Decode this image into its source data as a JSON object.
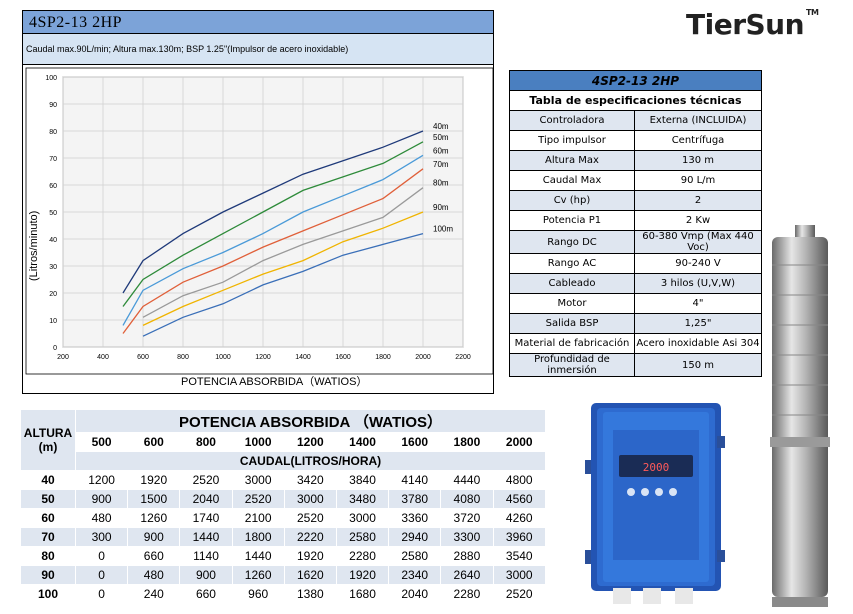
{
  "header": {
    "title": "4SP2-13    2HP",
    "subtitle": "Caudal max.90L/min;  Altura max.130m; BSP 1.25\"(Impulsor de acero inoxidable)"
  },
  "logo": {
    "text": "TierSun",
    "tm": "TM"
  },
  "chart_data": {
    "type": "line",
    "title": "",
    "xlabel": "POTENCIA ABSORBIDA（WATIOS）",
    "ylabel": "(Litros/minuto)",
    "xlim": [
      200,
      2200
    ],
    "ylim": [
      0,
      100
    ],
    "x_ticks": [
      200,
      400,
      600,
      800,
      1000,
      1200,
      1400,
      1600,
      1800,
      2000,
      2200
    ],
    "y_ticks": [
      0,
      10,
      20,
      30,
      40,
      50,
      60,
      70,
      80,
      90,
      100
    ],
    "grid": true,
    "series": [
      {
        "name": "40m",
        "color": "#1f3a7a",
        "points": [
          [
            500,
            20
          ],
          [
            600,
            32
          ],
          [
            800,
            42
          ],
          [
            1000,
            50
          ],
          [
            1200,
            57
          ],
          [
            1400,
            64
          ],
          [
            1600,
            69
          ],
          [
            1800,
            74
          ],
          [
            2000,
            80
          ]
        ]
      },
      {
        "name": "50m",
        "color": "#2e8b3a",
        "points": [
          [
            500,
            15
          ],
          [
            600,
            25
          ],
          [
            800,
            34
          ],
          [
            1000,
            42
          ],
          [
            1200,
            50
          ],
          [
            1400,
            58
          ],
          [
            1600,
            63
          ],
          [
            1800,
            68
          ],
          [
            2000,
            76
          ]
        ]
      },
      {
        "name": "60m",
        "color": "#4a9ad8",
        "points": [
          [
            500,
            8
          ],
          [
            600,
            21
          ],
          [
            800,
            29
          ],
          [
            1000,
            35
          ],
          [
            1200,
            42
          ],
          [
            1400,
            50
          ],
          [
            1600,
            56
          ],
          [
            1800,
            62
          ],
          [
            2000,
            71
          ]
        ]
      },
      {
        "name": "70m",
        "color": "#e0603a",
        "points": [
          [
            500,
            5
          ],
          [
            600,
            15
          ],
          [
            800,
            24
          ],
          [
            1000,
            30
          ],
          [
            1200,
            37
          ],
          [
            1400,
            43
          ],
          [
            1600,
            49
          ],
          [
            1800,
            55
          ],
          [
            2000,
            66
          ]
        ]
      },
      {
        "name": "80m",
        "color": "#9a9a9a",
        "points": [
          [
            600,
            11
          ],
          [
            800,
            19
          ],
          [
            1000,
            24
          ],
          [
            1200,
            32
          ],
          [
            1400,
            38
          ],
          [
            1600,
            43
          ],
          [
            1800,
            48
          ],
          [
            2000,
            59
          ]
        ]
      },
      {
        "name": "90m",
        "color": "#f0b400",
        "points": [
          [
            600,
            8
          ],
          [
            800,
            15
          ],
          [
            1000,
            21
          ],
          [
            1200,
            27
          ],
          [
            1400,
            32
          ],
          [
            1600,
            39
          ],
          [
            1800,
            44
          ],
          [
            2000,
            50
          ]
        ]
      },
      {
        "name": "100m",
        "color": "#3a6fb8",
        "points": [
          [
            600,
            4
          ],
          [
            800,
            11
          ],
          [
            1000,
            16
          ],
          [
            1200,
            23
          ],
          [
            1400,
            28
          ],
          [
            1600,
            34
          ],
          [
            1800,
            38
          ],
          [
            2000,
            42
          ]
        ]
      }
    ]
  },
  "spec": {
    "title": "4SP2-13 2HP",
    "subtitle": "Tabla de especificaciones técnicas",
    "rows": [
      {
        "k": "Controladora",
        "v": "Externa (INCLUIDA)"
      },
      {
        "k": "Tipo impulsor",
        "v": "Centrífuga"
      },
      {
        "k": "Altura Max",
        "v": "130 m"
      },
      {
        "k": "Caudal Max",
        "v": "90 L/m"
      },
      {
        "k": "Cv (hp)",
        "v": "2"
      },
      {
        "k": "Potencia P1",
        "v": "2 Kw"
      },
      {
        "k": "Rango DC",
        "v": "60-380 Vmp (Max 440 Voc)"
      },
      {
        "k": "Rango AC",
        "v": "90-240 V"
      },
      {
        "k": "Cableado",
        "v": "3 hilos (U,V,W)"
      },
      {
        "k": "Motor",
        "v": "4\""
      },
      {
        "k": "Salida BSP",
        "v": "1,25\""
      },
      {
        "k": "Material de fabricación",
        "v": "Acero inoxidable Asi 304"
      },
      {
        "k": "Profundidad de inmersión",
        "v": "150 m"
      }
    ]
  },
  "table": {
    "altura_label": "ALTURA",
    "altura_unit": "(m)",
    "power_title": "POTENCIA ABSORBIDA （WATIOS）",
    "caudal_label": "CAUDAL(LITROS/HORA)",
    "powers": [
      "500",
      "600",
      "800",
      "1000",
      "1200",
      "1400",
      "1600",
      "1800",
      "2000"
    ],
    "rows": [
      {
        "h": "40",
        "v": [
          "1200",
          "1920",
          "2520",
          "3000",
          "3420",
          "3840",
          "4140",
          "4440",
          "4800"
        ]
      },
      {
        "h": "50",
        "v": [
          "900",
          "1500",
          "2040",
          "2520",
          "3000",
          "3480",
          "3780",
          "4080",
          "4560"
        ]
      },
      {
        "h": "60",
        "v": [
          "480",
          "1260",
          "1740",
          "2100",
          "2520",
          "3000",
          "3360",
          "3720",
          "4260"
        ]
      },
      {
        "h": "70",
        "v": [
          "300",
          "900",
          "1440",
          "1800",
          "2220",
          "2580",
          "2940",
          "3300",
          "3960"
        ]
      },
      {
        "h": "80",
        "v": [
          "0",
          "660",
          "1140",
          "1440",
          "1920",
          "2280",
          "2580",
          "2880",
          "3540"
        ]
      },
      {
        "h": "90",
        "v": [
          "0",
          "480",
          "900",
          "1260",
          "1620",
          "1920",
          "2340",
          "2640",
          "3000"
        ]
      },
      {
        "h": "100",
        "v": [
          "0",
          "240",
          "660",
          "960",
          "1380",
          "1680",
          "2040",
          "2280",
          "2520"
        ]
      }
    ]
  },
  "controller_display": "2000"
}
